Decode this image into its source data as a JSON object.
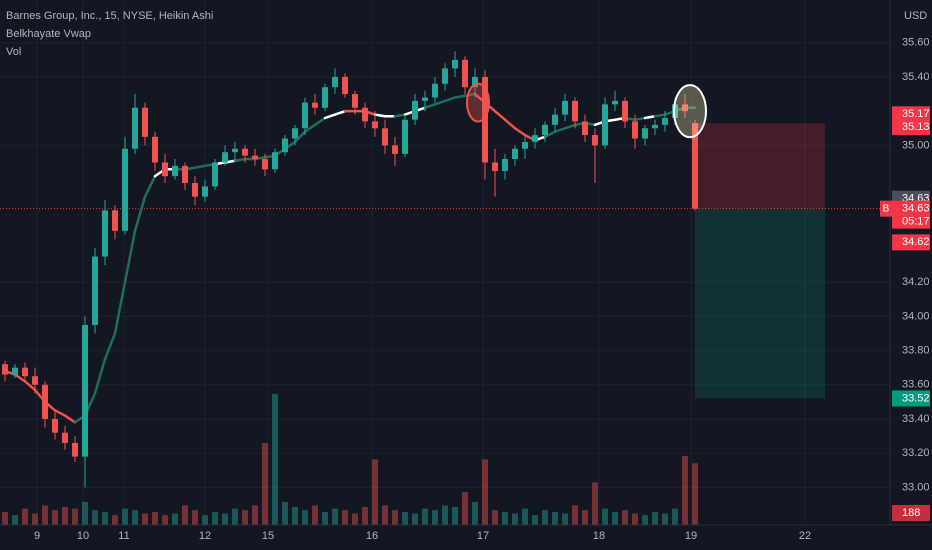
{
  "chart_data": {
    "type": "candlestick",
    "title": "Barnes Group, Inc., 15, NYSE, Heikin Ashi",
    "indicators": [
      "Belkhayate Vwap",
      "Vol"
    ],
    "currency": "USD",
    "up_color": "#26a69a",
    "down_color": "#ef5350",
    "xlim": [
      -0.5,
      88.5
    ],
    "xticks": [
      {
        "value": 3.2,
        "label": "9"
      },
      {
        "value": 7.8,
        "label": "10"
      },
      {
        "value": 11.9,
        "label": "11"
      },
      {
        "value": 20,
        "label": "12"
      },
      {
        "value": 26.3,
        "label": "15"
      },
      {
        "value": 36.7,
        "label": "16"
      },
      {
        "value": 47.8,
        "label": "17"
      },
      {
        "value": 59.4,
        "label": "18"
      },
      {
        "value": 68.6,
        "label": "19"
      },
      {
        "value": 80,
        "label": "22"
      }
    ],
    "ylim": [
      32.78,
      35.85
    ],
    "yticks": [
      {
        "value": 35.6,
        "label": "35.60"
      },
      {
        "value": 35.4,
        "label": "35.40"
      },
      {
        "value": 35.0,
        "label": "35.00"
      },
      {
        "value": 34.2,
        "label": "34.20"
      },
      {
        "value": 34.0,
        "label": "34.00"
      },
      {
        "value": 33.8,
        "label": "33.80"
      },
      {
        "value": 33.6,
        "label": "33.60"
      },
      {
        "value": 33.4,
        "label": "33.40"
      },
      {
        "value": 33.2,
        "label": "33.20"
      },
      {
        "value": 33.0,
        "label": "33.00"
      }
    ],
    "grid": true,
    "ohlc": [
      [
        33.72,
        33.74,
        33.62,
        33.66
      ],
      [
        33.66,
        33.72,
        33.64,
        33.7
      ],
      [
        33.7,
        33.73,
        33.63,
        33.65
      ],
      [
        33.65,
        33.7,
        33.55,
        33.6
      ],
      [
        33.6,
        33.62,
        33.35,
        33.4
      ],
      [
        33.4,
        33.45,
        33.28,
        33.32
      ],
      [
        33.32,
        33.36,
        33.22,
        33.26
      ],
      [
        33.26,
        33.3,
        33.15,
        33.18
      ],
      [
        33.18,
        34.0,
        33.0,
        33.95
      ],
      [
        33.95,
        34.4,
        33.9,
        34.35
      ],
      [
        34.35,
        34.68,
        34.3,
        34.62
      ],
      [
        34.62,
        34.65,
        34.45,
        34.5
      ],
      [
        34.5,
        35.05,
        34.48,
        34.98
      ],
      [
        34.98,
        35.3,
        34.95,
        35.22
      ],
      [
        35.22,
        35.25,
        35.0,
        35.05
      ],
      [
        35.05,
        35.08,
        34.85,
        34.9
      ],
      [
        34.9,
        34.95,
        34.78,
        34.82
      ],
      [
        34.82,
        34.92,
        34.8,
        34.88
      ],
      [
        34.88,
        34.9,
        34.74,
        34.78
      ],
      [
        34.78,
        34.82,
        34.65,
        34.7
      ],
      [
        34.7,
        34.8,
        34.67,
        34.76
      ],
      [
        34.76,
        34.92,
        34.74,
        34.9
      ],
      [
        34.9,
        35.0,
        34.88,
        34.96
      ],
      [
        34.96,
        35.02,
        34.9,
        34.98
      ],
      [
        34.98,
        35.0,
        34.9,
        34.94
      ],
      [
        34.94,
        34.98,
        34.88,
        34.92
      ],
      [
        34.92,
        34.95,
        34.82,
        34.86
      ],
      [
        34.86,
        34.98,
        34.84,
        34.96
      ],
      [
        34.96,
        35.06,
        34.94,
        35.04
      ],
      [
        35.04,
        35.12,
        35.0,
        35.1
      ],
      [
        35.1,
        35.28,
        35.06,
        35.25
      ],
      [
        35.25,
        35.3,
        35.18,
        35.22
      ],
      [
        35.22,
        35.36,
        35.2,
        35.34
      ],
      [
        35.34,
        35.45,
        35.3,
        35.4
      ],
      [
        35.4,
        35.42,
        35.28,
        35.3
      ],
      [
        35.3,
        35.32,
        35.18,
        35.22
      ],
      [
        35.22,
        35.25,
        35.1,
        35.14
      ],
      [
        35.14,
        35.2,
        35.05,
        35.1
      ],
      [
        35.1,
        35.15,
        34.95,
        35.0
      ],
      [
        35.0,
        35.05,
        34.88,
        34.95
      ],
      [
        34.95,
        35.18,
        34.93,
        35.15
      ],
      [
        35.15,
        35.3,
        35.12,
        35.26
      ],
      [
        35.26,
        35.32,
        35.2,
        35.28
      ],
      [
        35.28,
        35.4,
        35.25,
        35.36
      ],
      [
        35.36,
        35.48,
        35.32,
        35.45
      ],
      [
        35.45,
        35.55,
        35.4,
        35.5
      ],
      [
        35.5,
        35.52,
        35.3,
        35.34
      ],
      [
        35.34,
        35.45,
        35.28,
        35.4
      ],
      [
        35.4,
        35.44,
        34.8,
        34.9
      ],
      [
        34.9,
        34.98,
        34.7,
        34.85
      ],
      [
        34.85,
        34.95,
        34.8,
        34.92
      ],
      [
        34.92,
        35.0,
        34.88,
        34.98
      ],
      [
        34.98,
        35.05,
        34.92,
        35.02
      ],
      [
        35.02,
        35.1,
        34.98,
        35.06
      ],
      [
        35.06,
        35.14,
        35.02,
        35.12
      ],
      [
        35.12,
        35.22,
        35.08,
        35.18
      ],
      [
        35.18,
        35.3,
        35.14,
        35.26
      ],
      [
        35.26,
        35.28,
        35.1,
        35.14
      ],
      [
        35.14,
        35.18,
        35.02,
        35.06
      ],
      [
        35.06,
        35.1,
        34.78,
        35.0
      ],
      [
        35.0,
        35.28,
        34.98,
        35.24
      ],
      [
        35.24,
        35.32,
        35.2,
        35.26
      ],
      [
        35.26,
        35.28,
        35.1,
        35.14
      ],
      [
        35.14,
        35.18,
        34.98,
        35.04
      ],
      [
        35.04,
        35.12,
        35.0,
        35.1
      ],
      [
        35.1,
        35.15,
        35.06,
        35.12
      ],
      [
        35.12,
        35.2,
        35.08,
        35.16
      ],
      [
        35.16,
        35.28,
        35.12,
        35.24
      ],
      [
        35.24,
        35.3,
        35.16,
        35.2
      ],
      [
        35.13,
        35.15,
        34.62,
        34.63
      ]
    ],
    "volume_lim": [
      0,
      1600
    ],
    "volumes": [
      40,
      30,
      50,
      35,
      60,
      45,
      55,
      50,
      70,
      45,
      40,
      30,
      50,
      45,
      35,
      40,
      30,
      35,
      60,
      45,
      30,
      40,
      35,
      50,
      45,
      60,
      250,
      400,
      70,
      55,
      45,
      60,
      40,
      50,
      45,
      35,
      55,
      200,
      60,
      45,
      40,
      35,
      50,
      45,
      60,
      55,
      100,
      70,
      200,
      45,
      40,
      35,
      50,
      30,
      45,
      40,
      35,
      60,
      45,
      130,
      50,
      40,
      45,
      35,
      30,
      40,
      35,
      50,
      210,
      188
    ],
    "vwap": {
      "values": [
        33.68,
        33.66,
        33.62,
        33.57,
        33.5,
        33.45,
        33.42,
        33.38,
        33.42,
        33.55,
        33.75,
        33.9,
        34.2,
        34.5,
        34.7,
        34.82,
        34.86,
        34.86,
        34.86,
        34.87,
        34.88,
        34.89,
        34.9,
        34.91,
        34.92,
        34.92,
        34.93,
        34.94,
        34.98,
        35.02,
        35.08,
        35.12,
        35.16,
        35.18,
        35.2,
        35.2,
        35.2,
        35.18,
        35.17,
        35.17,
        35.18,
        35.2,
        35.22,
        35.24,
        35.26,
        35.28,
        35.29,
        35.3,
        35.25,
        35.2,
        35.15,
        35.1,
        35.06,
        35.03,
        35.05,
        35.08,
        35.1,
        35.12,
        35.13,
        35.12,
        35.14,
        35.15,
        35.16,
        35.15,
        35.16,
        35.17,
        35.18,
        35.2,
        35.22,
        35.22
      ],
      "colors": [
        "#ef5350",
        "#ef5350",
        "#ef5350",
        "#ef5350",
        "#ef5350",
        "#ef5350",
        "#ef5350",
        "#1e6e5a",
        "#1e6e5a",
        "#1e6e5a",
        "#1e6e5a",
        "#1e6e5a",
        "#1e6e5a",
        "#1e6e5a",
        "#1e6e5a",
        "#ffffff",
        "#ffffff",
        "#1e6e5a",
        "#1e6e5a",
        "#1e6e5a",
        "#1e6e5a",
        "#ffffff",
        "#ffffff",
        "#1e6e5a",
        "#1e6e5a",
        "#1e6e5a",
        "#1e6e5a",
        "#1e6e5a",
        "#1e6e5a",
        "#1e6e5a",
        "#1e6e5a",
        "#1e6e5a",
        "#ffffff",
        "#ffffff",
        "#ef5350",
        "#ef5350",
        "#ef5350",
        "#ffffff",
        "#ffffff",
        "#1e6e5a",
        "#ffffff",
        "#ffffff",
        "#1e6e5a",
        "#1e6e5a",
        "#1e6e5a",
        "#1e6e5a",
        "#1e6e5a",
        "#ef5350",
        "#ef5350",
        "#ef5350",
        "#ef5350",
        "#ef5350",
        "#ef5350",
        "#ffffff",
        "#1e6e5a",
        "#1e6e5a",
        "#1e6e5a",
        "#1e6e5a",
        "#1e6e5a",
        "#ffffff",
        "#ffffff",
        "#ffffff",
        "#1e6e5a",
        "#1e6e5a",
        "#ffffff",
        "#1e6e5a",
        "#1e6e5a",
        "#1e6e5a",
        "#1e6e5a",
        "#1e6e5a"
      ]
    },
    "position": {
      "stop": 35.13,
      "entry": 34.63,
      "target": 33.52,
      "x_range": [
        69,
        82
      ]
    },
    "price_labels": [
      {
        "value": 35.17,
        "color": "#f23645"
      },
      {
        "value": 35.13,
        "color": "#f23645"
      },
      {
        "value": 34.63,
        "color": "#4a4e5a"
      },
      {
        "value": 34.63,
        "color": "#f23645"
      },
      {
        "value": 34.62,
        "color": "#f23645"
      },
      {
        "value": 33.52,
        "color": "#089981"
      }
    ],
    "entry_marker": "B",
    "countdown": "05:17",
    "circles": [
      {
        "x": 47.3,
        "y": 35.25,
        "color": "#ef5350"
      },
      {
        "x": 68.5,
        "y": 35.2,
        "color": "#ffffff"
      }
    ]
  }
}
